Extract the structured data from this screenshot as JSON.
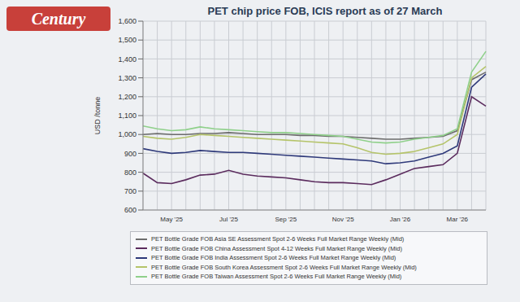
{
  "logo": "Century",
  "chart_data": {
    "type": "line",
    "title": "PET chip price FOB, ICIS report as of 27 March",
    "y_label": "USD /tonne",
    "categories": [
      null,
      null,
      "May '25",
      null,
      null,
      null,
      "Jul '25",
      null,
      null,
      null,
      "Sep '25",
      null,
      null,
      null,
      "Nov '25",
      null,
      null,
      null,
      "Jan '26",
      null,
      null,
      null,
      "Mar '26",
      null,
      null
    ],
    "series": [
      {
        "name": "PET Bottle Grade FOB Asia SE Assessment Spot 2-6 Weeks Full Market Range Weekly (Mid)",
        "color": "#6d6d6d",
        "values": [
          1000,
          1005,
          1000,
          1000,
          1005,
          1005,
          1010,
          1005,
          1000,
          1000,
          1000,
          995,
          995,
          990,
          990,
          985,
          980,
          975,
          975,
          980,
          985,
          990,
          1020,
          1290,
          1330
        ]
      },
      {
        "name": "PET Bottle Grade FOB China Assessment Spot 4-12 Weeks Full Market Range Weekly (Mid)",
        "color": "#5b2c5e",
        "values": [
          795,
          745,
          740,
          760,
          785,
          790,
          810,
          790,
          780,
          775,
          770,
          760,
          750,
          745,
          745,
          740,
          735,
          760,
          790,
          820,
          830,
          840,
          900,
          1200,
          1150
        ]
      },
      {
        "name": "PET Bottle Grade FOB India Assessment Spot 2-6 Weeks Full Market Range Weekly (Mid)",
        "color": "#2f3a7a",
        "values": [
          925,
          910,
          900,
          905,
          915,
          910,
          905,
          905,
          900,
          895,
          890,
          885,
          880,
          875,
          870,
          865,
          860,
          845,
          850,
          860,
          880,
          900,
          940,
          1250,
          1320
        ]
      },
      {
        "name": "PET Bottle Grade FOB South Korea Assessment Spot 2-6 Weeks Full Market Range Weekly (Mid)",
        "color": "#b5c46a",
        "values": [
          990,
          980,
          975,
          985,
          1000,
          995,
          990,
          985,
          980,
          975,
          970,
          965,
          960,
          955,
          950,
          930,
          905,
          895,
          900,
          910,
          930,
          950,
          1000,
          1300,
          1360
        ]
      },
      {
        "name": "PET Bottle Grade FOB Taiwan Assessment Spot 2-6 Weeks Full Market Range Weekly (Mid)",
        "color": "#8fd08a",
        "values": [
          1045,
          1030,
          1020,
          1025,
          1040,
          1030,
          1025,
          1020,
          1015,
          1010,
          1010,
          1005,
          1000,
          995,
          990,
          975,
          960,
          955,
          960,
          975,
          985,
          995,
          1030,
          1330,
          1440
        ]
      }
    ],
    "ylim": [
      600,
      1600
    ],
    "yticks": [
      {
        "value": 1600,
        "label": "1,600"
      },
      {
        "value": 1500,
        "label": "1,500"
      },
      {
        "value": 1400,
        "label": "1,400"
      },
      {
        "value": 1300,
        "label": "1,300"
      },
      {
        "value": 1200,
        "label": "1,200"
      },
      {
        "value": 1100,
        "label": "1,100"
      },
      {
        "value": 1000,
        "label": "1,000"
      },
      900,
      800,
      700,
      600
    ],
    "grid": true
  }
}
